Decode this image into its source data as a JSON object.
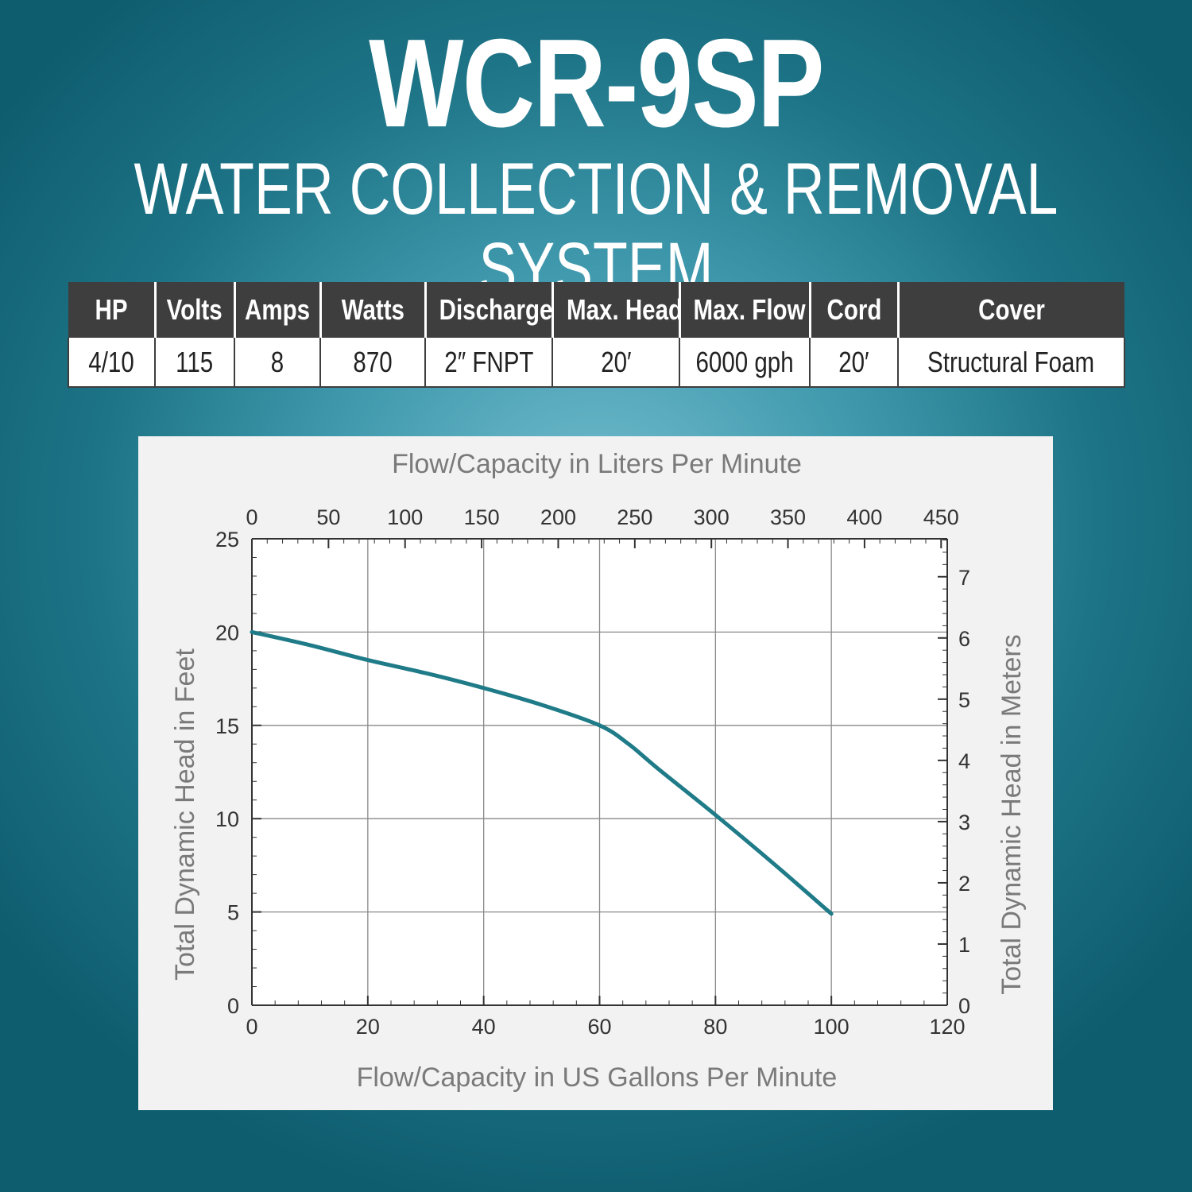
{
  "header": {
    "title": "WCR-9SP",
    "subtitle": "WATER COLLECTION & REMOVAL SYSTEM"
  },
  "specs": {
    "headers": [
      "HP",
      "Volts",
      "Amps",
      "Watts",
      "Discharge",
      "Max. Head",
      "Max. Flow",
      "Cord",
      "Cover"
    ],
    "values": [
      "4/10",
      "115",
      "8",
      "870",
      "2″ FNPT",
      "20′",
      "6000 gph",
      "20′",
      "Structural Foam"
    ]
  },
  "chart_data": {
    "type": "line",
    "xlabel": "Flow/Capacity in US Gallons Per Minute",
    "ylabel": "Total Dynamic Head in Feet",
    "x2label": "Flow/Capacity in Liters Per Minute",
    "y2label": "Total Dynamic Head in Meters",
    "xlim": [
      0,
      120
    ],
    "ylim": [
      0,
      25
    ],
    "x2lim": [
      0,
      454
    ],
    "y2lim": [
      0,
      7.62
    ],
    "xticks": [
      0,
      20,
      40,
      60,
      80,
      100,
      120
    ],
    "yticks": [
      0,
      5,
      10,
      15,
      20,
      25
    ],
    "x2ticks": [
      0,
      50,
      100,
      150,
      200,
      250,
      300,
      350,
      400,
      450
    ],
    "y2ticks": [
      0,
      1,
      2,
      3,
      4,
      5,
      6,
      7
    ],
    "grid": true,
    "series": [
      {
        "x": [
          0,
          10,
          20,
          30,
          40,
          50,
          60,
          65,
          70,
          80,
          90,
          100
        ],
        "y": [
          20,
          19.3,
          18.5,
          17.8,
          17,
          16.1,
          15,
          14,
          12.7,
          10.2,
          7.6,
          4.9
        ]
      }
    ],
    "colors": {
      "line": "#1f7b88",
      "grid": "#8a8a8a",
      "axis": "#333333",
      "plot_bg": "#ffffff"
    }
  }
}
